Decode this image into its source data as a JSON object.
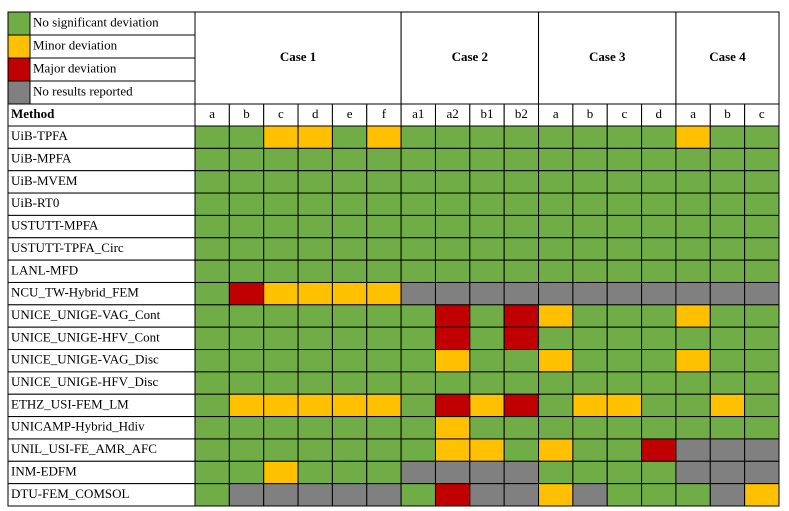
{
  "legend": [
    {
      "label": "No significant deviation",
      "color": "#70ad47"
    },
    {
      "label": "Minor deviation",
      "color": "#ffc000"
    },
    {
      "label": "Major deviation",
      "color": "#c00000"
    },
    {
      "label": "No results reported",
      "color": "#808080"
    }
  ],
  "method_header": "Method",
  "cases": [
    {
      "name": "Case 1",
      "columns": [
        "a",
        "b",
        "c",
        "d",
        "e",
        "f"
      ]
    },
    {
      "name": "Case 2",
      "columns": [
        "a1",
        "a2",
        "b1",
        "b2"
      ]
    },
    {
      "name": "Case 3",
      "columns": [
        "a",
        "b",
        "c",
        "d"
      ]
    },
    {
      "name": "Case 4",
      "columns": [
        "a",
        "b",
        "c"
      ]
    }
  ],
  "rows": [
    {
      "method": "UiB-TPFA",
      "status": [
        0,
        0,
        1,
        1,
        0,
        1,
        0,
        0,
        0,
        0,
        0,
        0,
        0,
        0,
        1,
        0,
        0
      ]
    },
    {
      "method": "UiB-MPFA",
      "status": [
        0,
        0,
        0,
        0,
        0,
        0,
        0,
        0,
        0,
        0,
        0,
        0,
        0,
        0,
        0,
        0,
        0
      ]
    },
    {
      "method": "UiB-MVEM",
      "status": [
        0,
        0,
        0,
        0,
        0,
        0,
        0,
        0,
        0,
        0,
        0,
        0,
        0,
        0,
        0,
        0,
        0
      ]
    },
    {
      "method": "UiB-RT0",
      "status": [
        0,
        0,
        0,
        0,
        0,
        0,
        0,
        0,
        0,
        0,
        0,
        0,
        0,
        0,
        0,
        0,
        0
      ]
    },
    {
      "method": "USTUTT-MPFA",
      "status": [
        0,
        0,
        0,
        0,
        0,
        0,
        0,
        0,
        0,
        0,
        0,
        0,
        0,
        0,
        0,
        0,
        0
      ]
    },
    {
      "method": "USTUTT-TPFA_Circ",
      "status": [
        0,
        0,
        0,
        0,
        0,
        0,
        0,
        0,
        0,
        0,
        0,
        0,
        0,
        0,
        0,
        0,
        0
      ]
    },
    {
      "method": "LANL-MFD",
      "status": [
        0,
        0,
        0,
        0,
        0,
        0,
        0,
        0,
        0,
        0,
        0,
        0,
        0,
        0,
        0,
        0,
        0
      ]
    },
    {
      "method": "NCU_TW-Hybrid_FEM",
      "status": [
        0,
        2,
        1,
        1,
        1,
        1,
        3,
        3,
        3,
        3,
        3,
        3,
        3,
        3,
        3,
        3,
        3
      ]
    },
    {
      "method": "UNICE_UNIGE-VAG_Cont",
      "status": [
        0,
        0,
        0,
        0,
        0,
        0,
        0,
        2,
        0,
        2,
        1,
        0,
        0,
        0,
        1,
        0,
        0
      ]
    },
    {
      "method": "UNICE_UNIGE-HFV_Cont",
      "status": [
        0,
        0,
        0,
        0,
        0,
        0,
        0,
        2,
        0,
        2,
        0,
        0,
        0,
        0,
        0,
        0,
        0
      ]
    },
    {
      "method": "UNICE_UNIGE-VAG_Disc",
      "status": [
        0,
        0,
        0,
        0,
        0,
        0,
        0,
        1,
        0,
        0,
        1,
        0,
        0,
        0,
        1,
        0,
        0
      ]
    },
    {
      "method": "UNICE_UNIGE-HFV_Disc",
      "status": [
        0,
        0,
        0,
        0,
        0,
        0,
        0,
        0,
        0,
        0,
        0,
        0,
        0,
        0,
        0,
        0,
        0
      ]
    },
    {
      "method": "ETHZ_USI-FEM_LM",
      "status": [
        0,
        1,
        1,
        1,
        1,
        1,
        0,
        2,
        1,
        2,
        0,
        1,
        1,
        0,
        0,
        1,
        0
      ]
    },
    {
      "method": "UNICAMP-Hybrid_Hdiv",
      "status": [
        0,
        0,
        0,
        0,
        0,
        0,
        0,
        1,
        0,
        0,
        0,
        0,
        0,
        0,
        0,
        0,
        0
      ]
    },
    {
      "method": "UNIL_USI-FE_AMR_AFC",
      "status": [
        0,
        0,
        0,
        0,
        0,
        0,
        0,
        1,
        1,
        0,
        1,
        0,
        0,
        2,
        3,
        3,
        3
      ]
    },
    {
      "method": "INM-EDFM",
      "status": [
        0,
        0,
        1,
        0,
        0,
        0,
        3,
        3,
        3,
        3,
        0,
        0,
        0,
        0,
        3,
        3,
        3
      ]
    },
    {
      "method": "DTU-FEM_COMSOL",
      "status": [
        0,
        3,
        3,
        3,
        3,
        3,
        0,
        2,
        3,
        3,
        1,
        3,
        0,
        0,
        0,
        3,
        1
      ]
    }
  ]
}
